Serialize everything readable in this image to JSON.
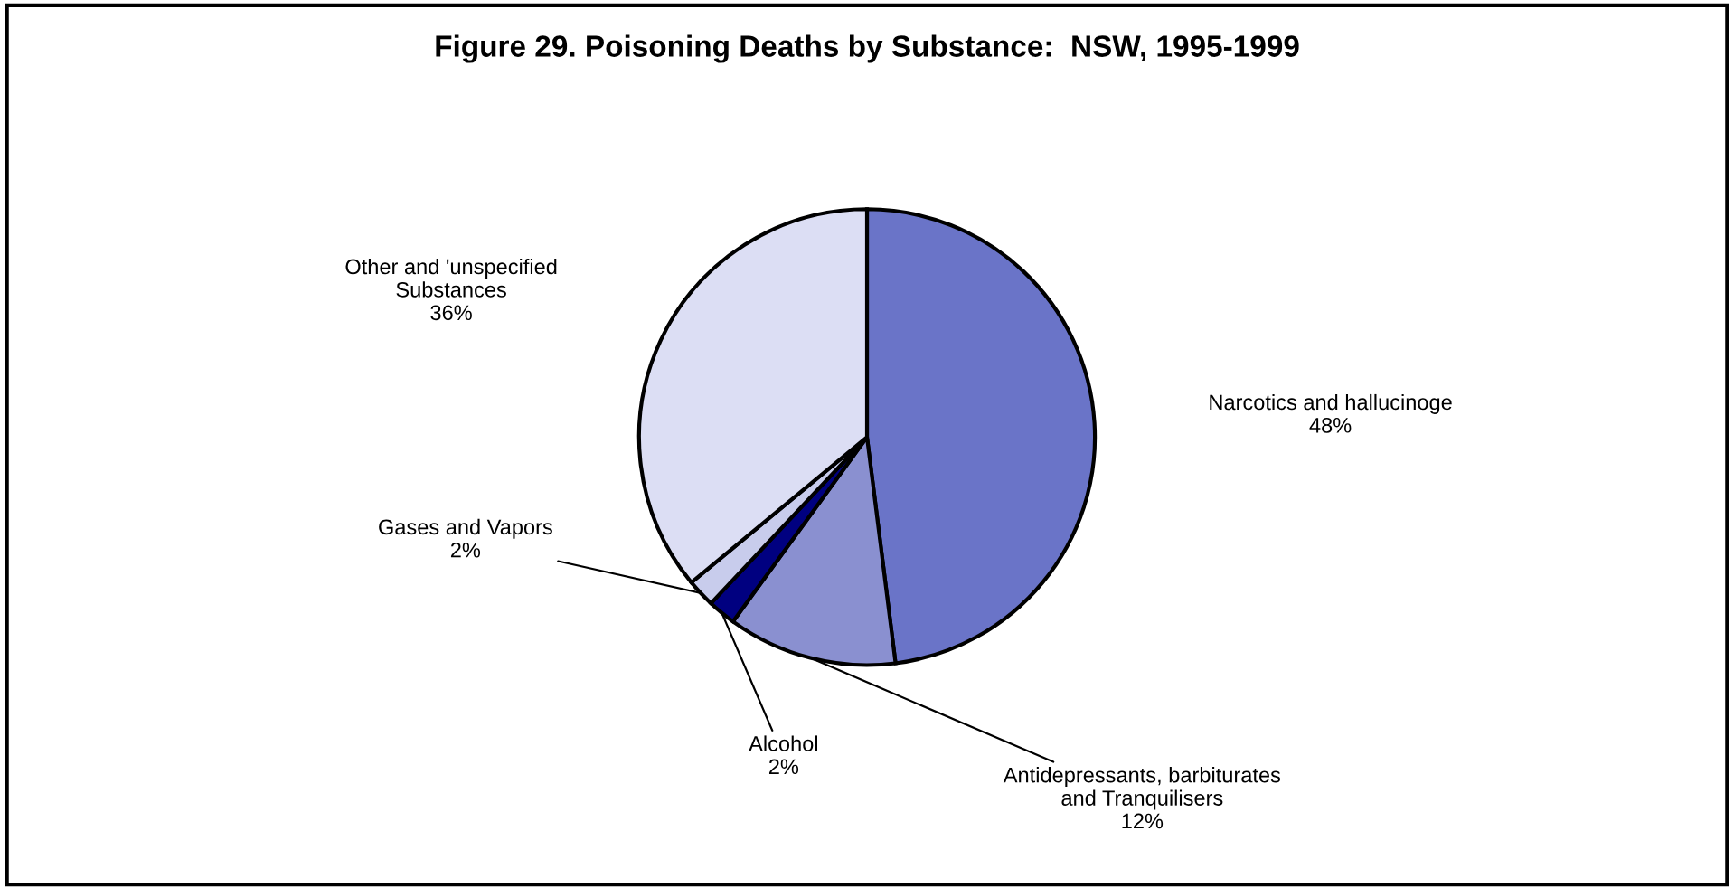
{
  "chart_data": {
    "type": "pie",
    "title": "Figure 29. Poisoning Deaths by Substance:  NSW, 1995-1999",
    "categories": [
      "Narcotics and hallucinoge",
      "Antidepressants, barbiturates\nand Tranquilisers",
      "Alcohol",
      "Gases and Vapors",
      "Other and 'unspecified\nSubstances"
    ],
    "values": [
      48,
      12,
      2,
      2,
      36
    ],
    "colors": [
      "#6a74c8",
      "#8a90d0",
      "#000080",
      "#c8ccec",
      "#dcdef4"
    ],
    "value_labels": [
      "48%",
      "12%",
      "2%",
      "2%",
      "36%"
    ],
    "legend": false
  }
}
